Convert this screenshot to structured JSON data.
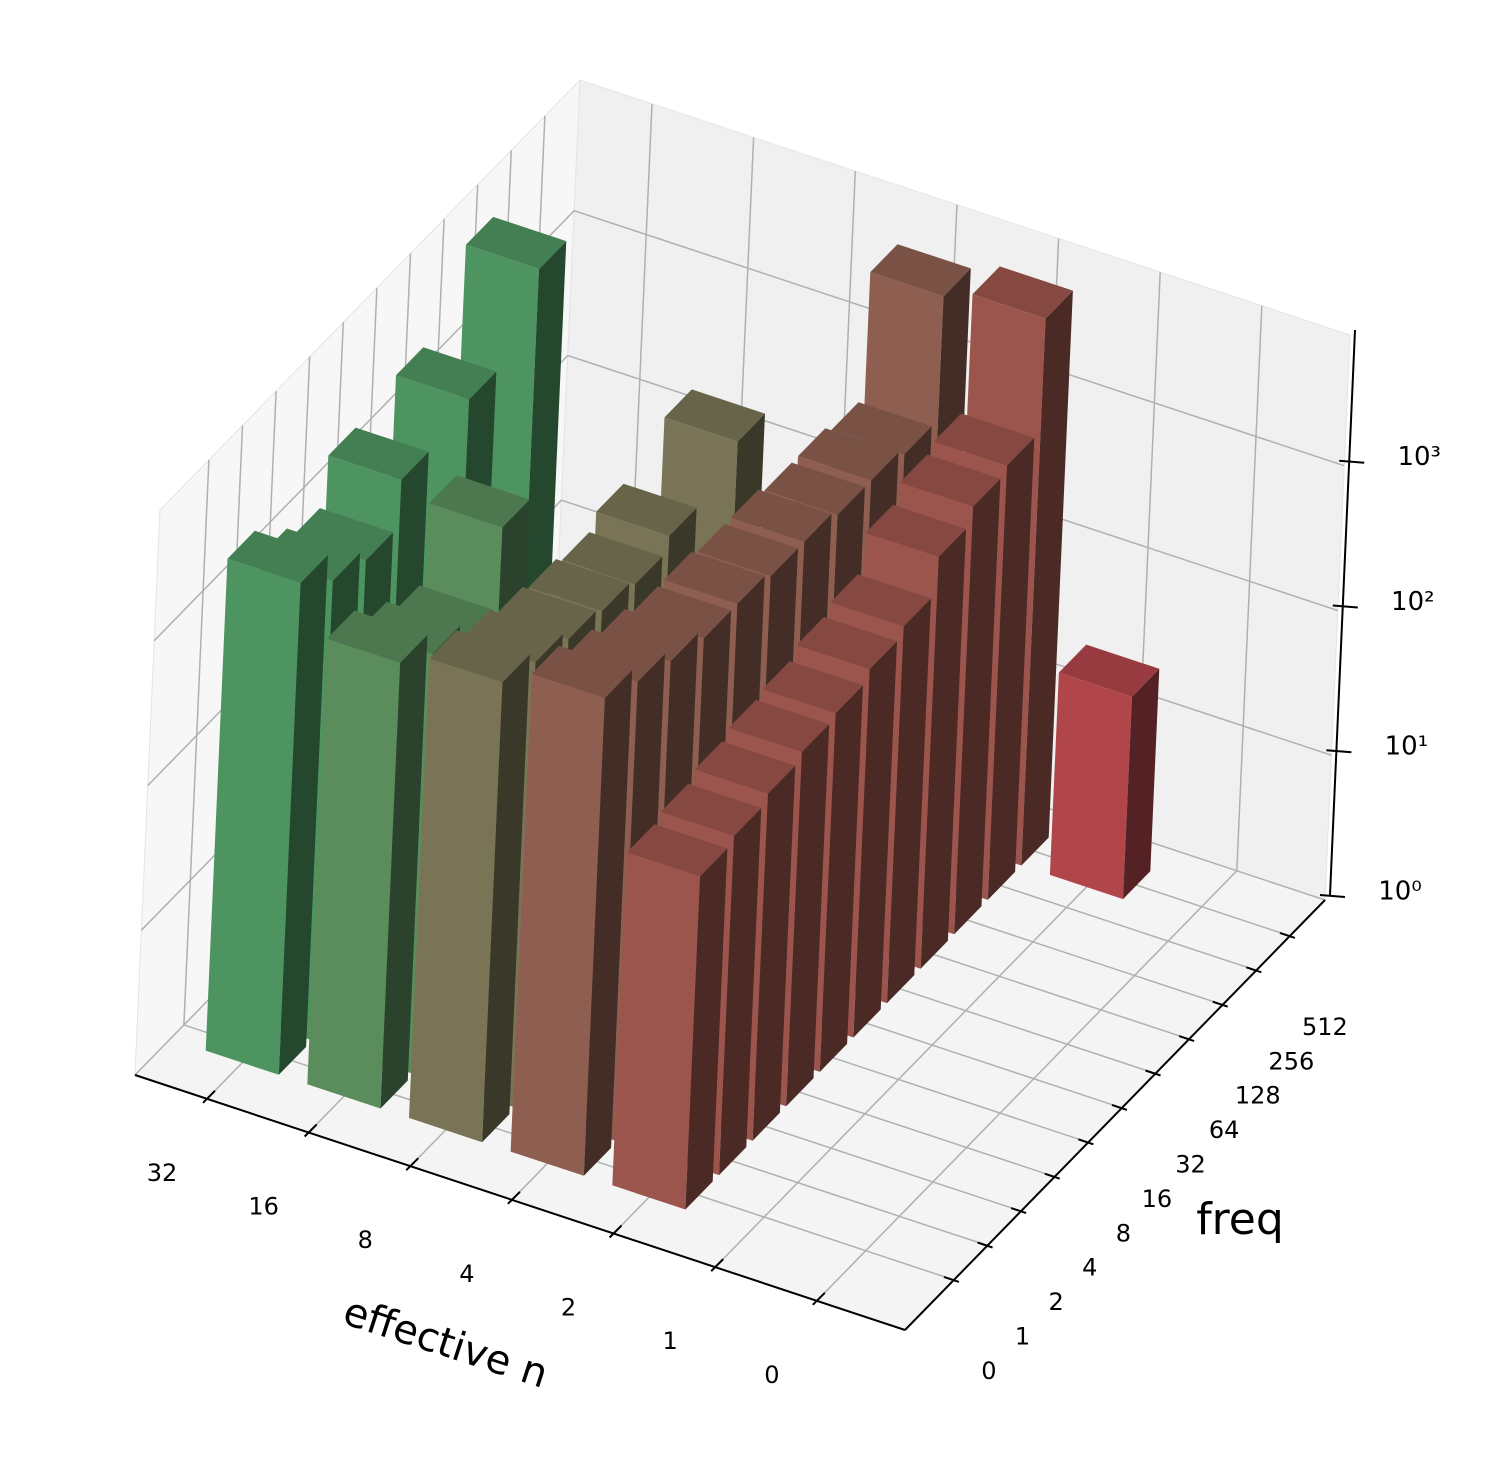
{
  "chart_data": {
    "type": "bar3d",
    "x_label": "effective n",
    "y_label": "freq",
    "categories": [
      "0",
      "1",
      "2",
      "4",
      "8",
      "16",
      "32"
    ],
    "y_categories": [
      "0",
      "1",
      "2",
      "4",
      "8",
      "16",
      "32",
      "64",
      "128",
      "256",
      "512"
    ],
    "values": [
      [
        null,
        null,
        null,
        null,
        null,
        null,
        null,
        null,
        null,
        null,
        null
      ],
      [
        null,
        null,
        null,
        null,
        null,
        null,
        null,
        null,
        null,
        null,
        25
      ],
      [
        200,
        220,
        250,
        280,
        300,
        350,
        400,
        700,
        900,
        1000,
        6000
      ],
      [
        2000,
        1500,
        1200,
        1000,
        1000,
        900,
        900,
        800,
        800,
        700,
        5000
      ],
      [
        1500,
        1200,
        1000,
        900,
        800,
        1000,
        null,
        1500,
        null,
        null,
        null
      ],
      [
        1200,
        800,
        600,
        2000,
        null,
        null,
        null,
        null,
        null,
        null,
        null
      ],
      [
        2500,
        1500,
        1200,
        2500,
        null,
        3000,
        null,
        8000,
        null,
        null,
        null
      ]
    ],
    "colors": [
      "#b0454a",
      "#b0454a",
      "#9c554d",
      "#8e5e50",
      "#797456",
      "#5a8c5c",
      "#4e9460"
    ],
    "zscale": "log",
    "zlim": [
      1,
      8000
    ],
    "zticks": [
      {
        "value": 1,
        "label": "10⁰"
      },
      {
        "value": 10,
        "label": "10¹"
      },
      {
        "value": 100,
        "label": "10²"
      },
      {
        "value": 1000,
        "label": "10³"
      }
    ],
    "grid": true
  }
}
